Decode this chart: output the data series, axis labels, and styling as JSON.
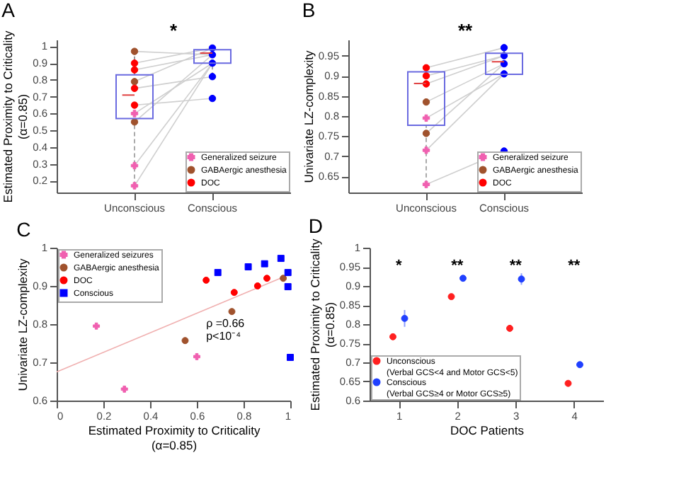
{
  "chart_data": [
    {
      "type": "box",
      "title": "A",
      "ylabel": "Estimated Proximity to Criticality\n(α=0.85)",
      "categories": [
        "Unconscious",
        "Conscious"
      ],
      "color": "#6a6ae0",
      "ylim": [
        0.13,
        1.04
      ],
      "yticks": [
        0.2,
        0.3,
        0.4,
        0.5,
        0.6,
        0.7,
        0.8,
        0.9,
        1
      ],
      "legend": "bottom right",
      "annotations": [
        "*"
      ],
      "boxes": [
        {
          "low": 0.17,
          "q1": 0.57,
          "median": 0.71,
          "q3": 0.83,
          "high": 0.97
        },
        {
          "low": 0.82,
          "q1": 0.9,
          "median": 0.96,
          "q3": 0.98,
          "high": 1.0
        }
      ],
      "series": [
        {
          "type": "line",
          "color": "#cfcfcf",
          "x": [
            "Unconscious",
            "Conscious"
          ],
          "values": [
            0.97,
            0.95
          ]
        },
        {
          "type": "line",
          "color": "#cfcfcf",
          "x": [
            "Unconscious",
            "Conscious"
          ],
          "values": [
            0.9,
            0.99
          ]
        },
        {
          "type": "line",
          "color": "#cfcfcf",
          "x": [
            "Unconscious",
            "Conscious"
          ],
          "values": [
            0.86,
            0.95
          ]
        },
        {
          "type": "line",
          "color": "#cfcfcf",
          "x": [
            "Unconscious",
            "Conscious"
          ],
          "values": [
            0.79,
            0.99
          ]
        },
        {
          "type": "line",
          "color": "#cfcfcf",
          "x": [
            "Unconscious",
            "Conscious"
          ],
          "values": [
            0.75,
            0.82
          ]
        },
        {
          "type": "line",
          "color": "#cfcfcf",
          "x": [
            "Unconscious",
            "Conscious"
          ],
          "values": [
            0.65,
            0.69
          ]
        },
        {
          "type": "line",
          "color": "#cfcfcf",
          "x": [
            "Unconscious",
            "Conscious"
          ],
          "values": [
            0.55,
            0.95
          ]
        },
        {
          "type": "line",
          "color": "#cfcfcf",
          "x": [
            "Unconscious",
            "Conscious"
          ],
          "values": [
            0.6,
            0.9
          ]
        },
        {
          "type": "line",
          "color": "#cfcfcf",
          "x": [
            "Unconscious",
            "Conscious"
          ],
          "values": [
            0.29,
            0.9
          ]
        },
        {
          "type": "line",
          "color": "#cfcfcf",
          "x": [
            "Unconscious",
            "Conscious"
          ],
          "values": [
            0.17,
            0.9
          ]
        },
        {
          "type": "scatter",
          "color": "#0000ff",
          "marker": "circle",
          "x": [
            "Conscious",
            "Conscious",
            "Conscious",
            "Conscious",
            "Conscious"
          ],
          "values": [
            0.99,
            0.95,
            0.9,
            0.82,
            0.69
          ]
        },
        {
          "type": "scatter",
          "name": "Generalized seizure",
          "color": "#f060b0",
          "marker": "cross",
          "x": [
            "Unconscious",
            "Unconscious",
            "Unconscious"
          ],
          "values": [
            0.17,
            0.29,
            0.6
          ]
        },
        {
          "type": "scatter",
          "name": "GABAergic anesthesia",
          "color": "#a0522d",
          "marker": "circle",
          "x": [
            "Unconscious",
            "Unconscious",
            "Unconscious"
          ],
          "values": [
            0.97,
            0.79,
            0.55
          ]
        },
        {
          "type": "scatter",
          "name": "DOC",
          "color": "#ff0000",
          "marker": "circle",
          "x": [
            "Unconscious",
            "Unconscious",
            "Unconscious",
            "Unconscious"
          ],
          "values": [
            0.9,
            0.86,
            0.75,
            0.65
          ]
        }
      ]
    },
    {
      "type": "box",
      "title": "B",
      "ylabel": "Univariate LZ-complexity",
      "categories": [
        "Unconscious",
        "Conscious"
      ],
      "color": "#6a6ae0",
      "ylim": [
        0.61,
        0.99
      ],
      "yticks": [
        0.65,
        0.7,
        0.75,
        0.8,
        0.85,
        0.9,
        0.95
      ],
      "legend": "bottom right",
      "annotations": [
        "**"
      ],
      "boxes": [
        {
          "low": 0.63,
          "q1": 0.777,
          "median": 0.881,
          "q3": 0.91,
          "high": 0.92
        },
        {
          "low": 0.897,
          "q1": 0.904,
          "median": 0.935,
          "q3": 0.956,
          "high": 0.972
        }
      ],
      "series": [
        {
          "type": "line",
          "color": "#cfcfcf",
          "x": [
            "Unconscious",
            "Conscious"
          ],
          "values": [
            0.63,
            0.713
          ]
        },
        {
          "type": "line",
          "color": "#cfcfcf",
          "x": [
            "Unconscious",
            "Conscious"
          ],
          "values": [
            0.715,
            0.905
          ]
        },
        {
          "type": "line",
          "color": "#cfcfcf",
          "x": [
            "Unconscious",
            "Conscious"
          ],
          "values": [
            0.795,
            0.905
          ]
        },
        {
          "type": "line",
          "color": "#cfcfcf",
          "x": [
            "Unconscious",
            "Conscious"
          ],
          "values": [
            0.757,
            0.93
          ]
        },
        {
          "type": "line",
          "color": "#cfcfcf",
          "x": [
            "Unconscious",
            "Conscious"
          ],
          "values": [
            0.835,
            0.93
          ]
        },
        {
          "type": "line",
          "color": "#cfcfcf",
          "x": [
            "Unconscious",
            "Conscious"
          ],
          "values": [
            0.88,
            0.95
          ]
        },
        {
          "type": "line",
          "color": "#cfcfcf",
          "x": [
            "Unconscious",
            "Conscious"
          ],
          "values": [
            0.9,
            0.95
          ]
        },
        {
          "type": "line",
          "color": "#cfcfcf",
          "x": [
            "Unconscious",
            "Conscious"
          ],
          "values": [
            0.92,
            0.97
          ]
        },
        {
          "type": "scatter",
          "color": "#0000ff",
          "marker": "circle",
          "x": [
            "Conscious",
            "Conscious",
            "Conscious",
            "Conscious",
            "Conscious"
          ],
          "values": [
            0.97,
            0.95,
            0.93,
            0.905,
            0.713
          ]
        },
        {
          "type": "scatter",
          "name": "Generalized seizure",
          "color": "#f060b0",
          "marker": "cross",
          "x": [
            "Unconscious",
            "Unconscious",
            "Unconscious"
          ],
          "values": [
            0.795,
            0.715,
            0.63
          ]
        },
        {
          "type": "scatter",
          "name": "GABAergic anesthesia",
          "color": "#a0522d",
          "marker": "circle",
          "x": [
            "Unconscious",
            "Unconscious"
          ],
          "values": [
            0.835,
            0.757
          ]
        },
        {
          "type": "scatter",
          "name": "DOC",
          "color": "#ff0000",
          "marker": "circle",
          "x": [
            "Unconscious",
            "Unconscious",
            "Unconscious"
          ],
          "values": [
            0.92,
            0.9,
            0.88
          ]
        }
      ]
    },
    {
      "type": "scatter",
      "title": "C",
      "xlabel": "Estimated Proximity to Criticality\n(α=0.85)",
      "ylabel": "Univariate LZ-complexity",
      "xlim": [
        0,
        1
      ],
      "xticks": [
        0,
        0.2,
        0.4,
        0.6,
        0.8,
        1
      ],
      "ylim": [
        0.6,
        1
      ],
      "yticks": [
        0.6,
        0.7,
        0.8,
        0.9,
        1
      ],
      "legend": "top left",
      "annotations": [
        "ρ =0.66",
        "p<10⁻⁴"
      ],
      "series": [
        {
          "type": "line",
          "color": "#f0b0b0",
          "x": [
            0,
            0.97
          ],
          "values": [
            0.675,
            0.923
          ]
        },
        {
          "name": "Generalized seizures",
          "color": "#f060b0",
          "marker": "cross",
          "x": [
            0.17,
            0.29,
            0.6
          ],
          "values": [
            0.795,
            0.63,
            0.715
          ]
        },
        {
          "name": "GABAergic anesthesia",
          "color": "#a0522d",
          "marker": "circle",
          "x": [
            0.55,
            0.75,
            0.97
          ],
          "values": [
            0.757,
            0.833,
            0.92
          ]
        },
        {
          "name": "DOC",
          "color": "#ff0000",
          "marker": "circle",
          "x": [
            0.64,
            0.76,
            0.86,
            0.9
          ],
          "values": [
            0.915,
            0.883,
            0.9,
            0.92
          ]
        },
        {
          "name": "Conscious",
          "color": "#0000ff",
          "marker": "square",
          "x": [
            0.69,
            0.82,
            0.89,
            0.96,
            0.99,
            0.99,
            1.0
          ],
          "values": [
            0.935,
            0.95,
            0.958,
            0.972,
            0.935,
            0.898,
            0.713
          ]
        }
      ]
    },
    {
      "type": "scatter",
      "title": "D",
      "xlabel": "DOC Patients",
      "ylabel": "Estimated Proximity to Criticality\n(α=0.85)",
      "xlim": [
        0.5,
        4.5
      ],
      "xticks": [
        1,
        2,
        3,
        4
      ],
      "ylim": [
        0.6,
        1
      ],
      "yticks": [
        0.6,
        0.65,
        0.7,
        0.75,
        0.8,
        0.85,
        0.9,
        0.95,
        1
      ],
      "legend": "bottom left",
      "annotations": [
        "*",
        "**",
        "**",
        "**"
      ],
      "series": [
        {
          "name": "Unconscious\n(Verbal GCS<4 and Motor GCS<5)",
          "color": "#ff2020",
          "marker": "circle",
          "x": [
            0.9,
            1.9,
            2.9,
            3.9
          ],
          "values": [
            0.767,
            0.872,
            0.789,
            0.645
          ],
          "errors": [
            0.008,
            0.005,
            0.005,
            0.005
          ]
        },
        {
          "name": "Conscious\n(Verbal GCS≥4 or Motor GCS≥5)",
          "color": "#2040ff",
          "marker": "circle",
          "x": [
            1.1,
            2.1,
            3.1,
            4.1
          ],
          "values": [
            0.815,
            0.92,
            0.918,
            0.694
          ],
          "errors": [
            0.022,
            0.005,
            0.015,
            0.007
          ]
        }
      ]
    }
  ]
}
